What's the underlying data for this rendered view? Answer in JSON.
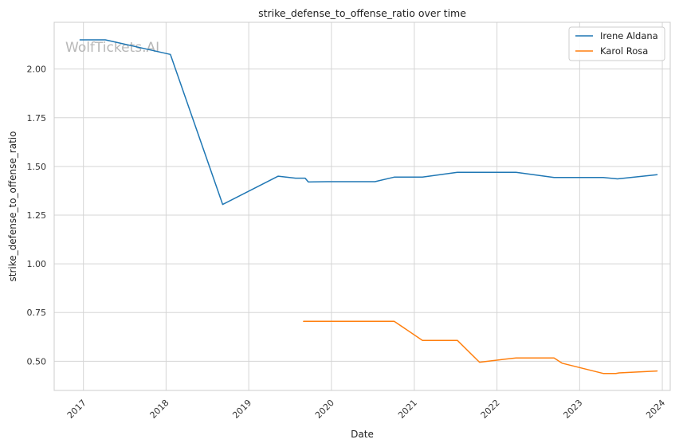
{
  "watermark": "WolfTickets.AI",
  "chart_data": {
    "type": "line",
    "title": "strike_defense_to_offense_ratio over time",
    "xlabel": "Date",
    "ylabel": "strike_defense_to_offense_ratio",
    "xlim": [
      "2016-08-25",
      "2024-02-05"
    ],
    "ylim": [
      0.35,
      2.24
    ],
    "x_ticks": [
      "2017-01-01",
      "2018-01-01",
      "2019-01-01",
      "2020-01-01",
      "2021-01-01",
      "2022-01-01",
      "2023-01-01",
      "2024-01-01"
    ],
    "x_tick_labels": [
      "2017",
      "2018",
      "2019",
      "2020",
      "2021",
      "2022",
      "2023",
      "2024"
    ],
    "y_ticks": [
      0.5,
      0.75,
      1.0,
      1.25,
      1.5,
      1.75,
      2.0
    ],
    "y_tick_labels": [
      "0.50",
      "0.75",
      "1.00",
      "1.25",
      "1.50",
      "1.75",
      "2.00"
    ],
    "grid": true,
    "legend_position": "top-right",
    "series": [
      {
        "name": "Irene Aldana",
        "color": "#1f77b4",
        "points": [
          [
            "2016-12-17",
            2.15
          ],
          [
            "2017-04-08",
            2.15
          ],
          [
            "2018-01-20",
            2.075
          ],
          [
            "2018-09-08",
            1.305
          ],
          [
            "2019-05-11",
            1.45
          ],
          [
            "2019-07-27",
            1.44
          ],
          [
            "2019-09-07",
            1.44
          ],
          [
            "2019-09-21",
            1.42
          ],
          [
            "2019-12-14",
            1.422
          ],
          [
            "2020-07-11",
            1.422
          ],
          [
            "2020-10-04",
            1.445
          ],
          [
            "2021-02-06",
            1.445
          ],
          [
            "2021-07-10",
            1.47
          ],
          [
            "2022-03-26",
            1.47
          ],
          [
            "2022-09-10",
            1.443
          ],
          [
            "2023-04-15",
            1.443
          ],
          [
            "2023-06-17",
            1.436
          ],
          [
            "2023-12-09",
            1.458
          ]
        ]
      },
      {
        "name": "Karol Rosa",
        "color": "#ff7f0e",
        "points": [
          [
            "2019-08-31",
            0.705
          ],
          [
            "2020-10-04",
            0.705
          ],
          [
            "2021-02-06",
            0.607
          ],
          [
            "2021-07-10",
            0.607
          ],
          [
            "2021-10-16",
            0.495
          ],
          [
            "2022-03-26",
            0.517
          ],
          [
            "2022-09-10",
            0.517
          ],
          [
            "2022-10-15",
            0.49
          ],
          [
            "2023-04-15",
            0.437
          ],
          [
            "2023-06-10",
            0.437
          ],
          [
            "2023-06-24",
            0.44
          ],
          [
            "2023-12-09",
            0.45
          ]
        ]
      }
    ]
  }
}
